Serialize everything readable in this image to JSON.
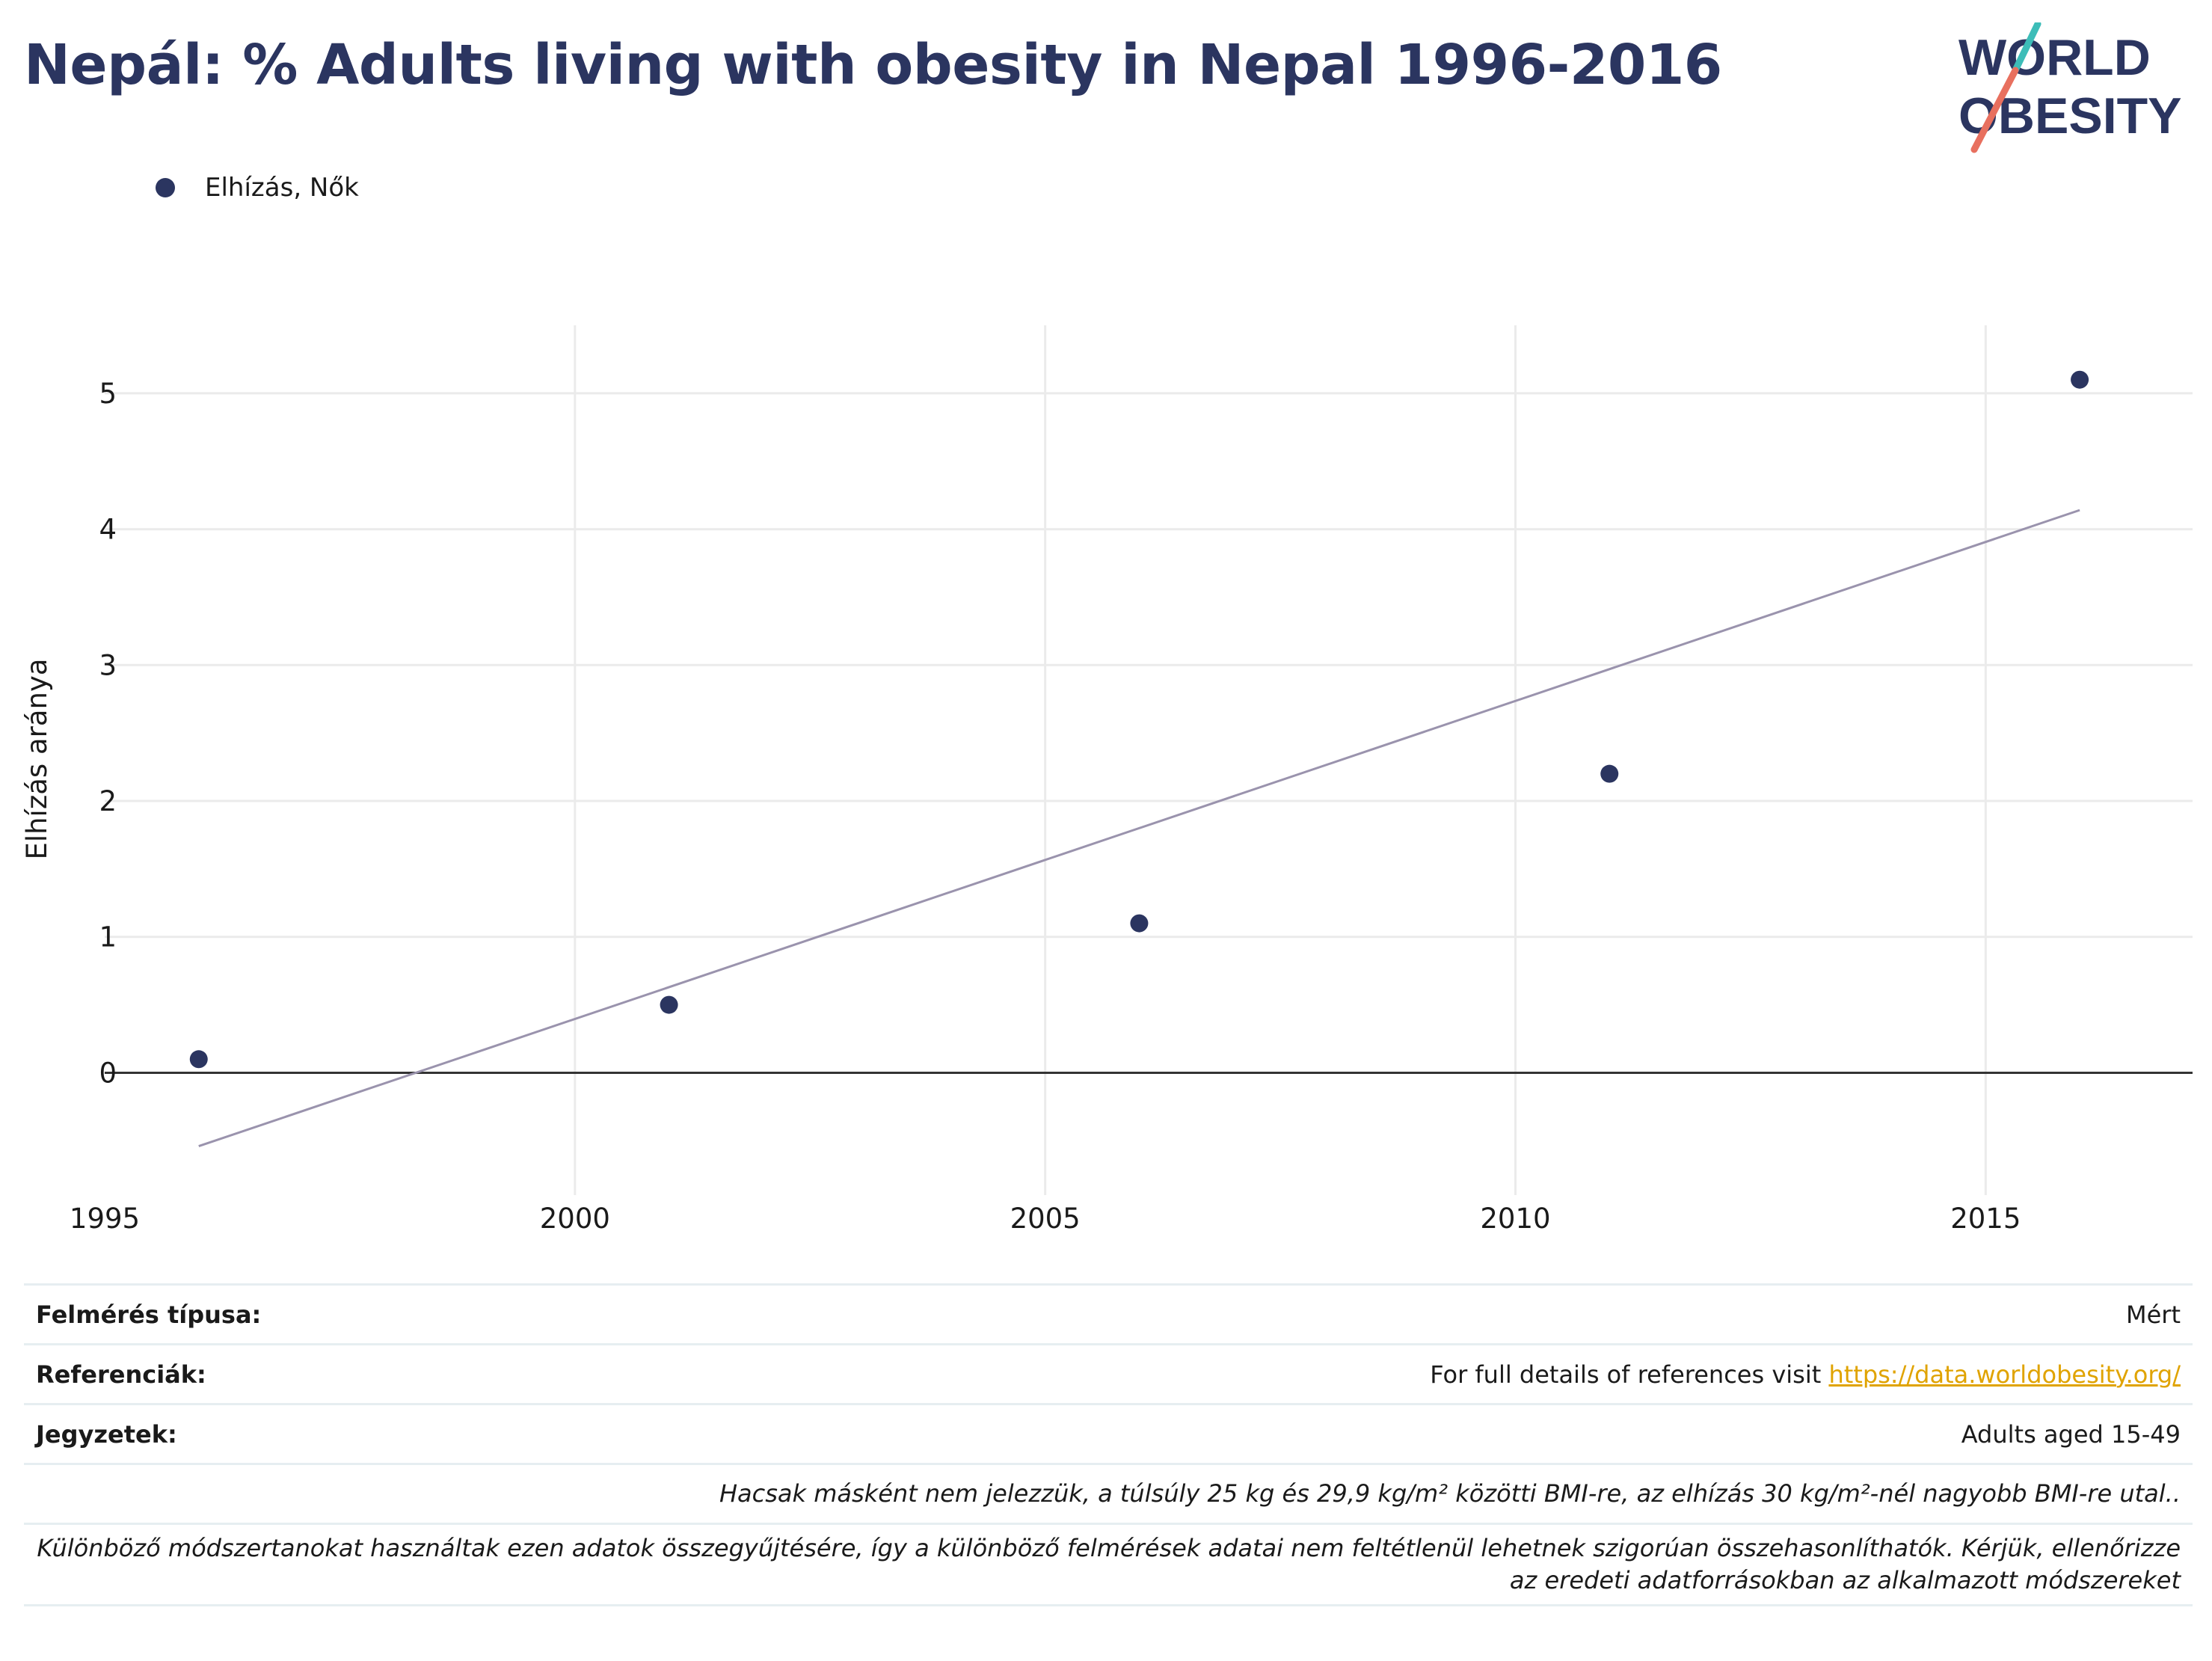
{
  "title": "Nepál: % Adults living with obesity in Nepal 1996-2016",
  "logo": {
    "line1": "WORLD",
    "line2": "OBESITY",
    "accent_teal": "#3dbdb8",
    "accent_coral": "#e8705f",
    "text_color": "#2b3560"
  },
  "legend": {
    "label": "Elhízás, Nők"
  },
  "chart_data": {
    "type": "scatter",
    "ylabel": "Elhízás aránya",
    "xlabel": "",
    "xlim": [
      1995,
      2017.2
    ],
    "ylim": [
      -0.9,
      5.5
    ],
    "x_ticks": [
      1995,
      2000,
      2005,
      2010,
      2015
    ],
    "y_ticks": [
      0,
      1,
      2,
      3,
      4,
      5
    ],
    "grid": true,
    "legend_position": "top-left",
    "series": [
      {
        "name": "Elhízás, Nők",
        "color": "#2b3560",
        "points": [
          {
            "x": 1996,
            "y": 0.1
          },
          {
            "x": 2001,
            "y": 0.5
          },
          {
            "x": 2006,
            "y": 1.1
          },
          {
            "x": 2011,
            "y": 2.2
          },
          {
            "x": 2016,
            "y": 5.1
          }
        ]
      }
    ],
    "trendline": {
      "color": "#9a93ad",
      "start": {
        "x": 1996,
        "y": -0.54
      },
      "end": {
        "x": 2016,
        "y": 4.14
      }
    }
  },
  "info": {
    "survey_type_label": "Felmérés típusa:",
    "survey_type_value": "Mért",
    "references_label": "Referenciák:",
    "references_text": "For full details of references visit ",
    "references_link": "https://data.worldobesity.org/",
    "notes_label": "Jegyzetek:",
    "notes_value": "Adults aged 15-49",
    "note_bmi": "Hacsak másként nem jelezzük, a túlsúly 25 kg és 29,9 kg/m² közötti BMI-re, az elhízás 30 kg/m²-nél nagyobb BMI-re utal..",
    "note_methods": "Különböző módszertanokat használtak ezen adatok összegyűjtésére, így a különböző felmérések adatai nem feltétlenül lehetnek szigorúan összehasonlíthatók. Kérjük, ellenőrizze az eredeti adatforrásokban az alkalmazott módszereket"
  }
}
